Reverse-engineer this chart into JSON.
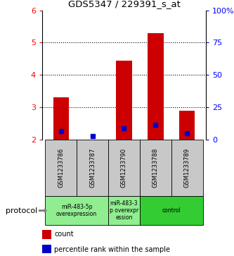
{
  "title": "GDS5347 / 229391_s_at",
  "samples": [
    "GSM1233786",
    "GSM1233787",
    "GSM1233790",
    "GSM1233788",
    "GSM1233789"
  ],
  "red_values": [
    3.3,
    2.0,
    4.45,
    5.3,
    2.9
  ],
  "blue_values": [
    2.25,
    2.1,
    2.35,
    2.45,
    2.2
  ],
  "ylim_left": [
    2,
    6
  ],
  "ylim_right": [
    0,
    100
  ],
  "yticks_left": [
    2,
    3,
    4,
    5,
    6
  ],
  "yticks_right": [
    0,
    25,
    50,
    75,
    100
  ],
  "ytick_labels_right": [
    "0",
    "25",
    "50",
    "75",
    "100%"
  ],
  "groups": [
    {
      "label": "miR-483-5p\noverexpression",
      "samples": [
        "GSM1233786",
        "GSM1233787"
      ],
      "color": "#90EE90"
    },
    {
      "label": "miR-483-3\np overexpr\nession",
      "samples": [
        "GSM1233790"
      ],
      "color": "#90EE90"
    },
    {
      "label": "control",
      "samples": [
        "GSM1233788",
        "GSM1233789"
      ],
      "color": "#33CC33"
    }
  ],
  "bar_color": "#CC0000",
  "blue_color": "#0000CC",
  "bg_color": "#C8C8C8",
  "protocol_label": "protocol",
  "legend_items": [
    {
      "color": "#CC0000",
      "label": "count"
    },
    {
      "color": "#0000CC",
      "label": "percentile rank within the sample"
    }
  ]
}
